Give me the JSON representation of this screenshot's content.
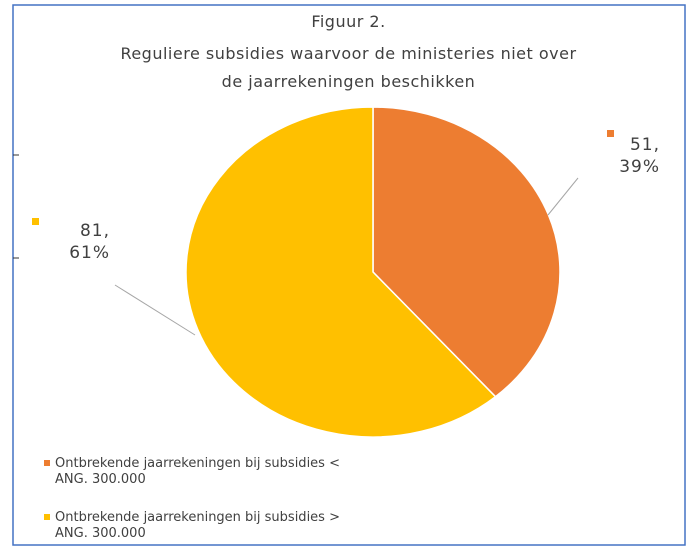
{
  "chart_data": {
    "type": "pie",
    "title": [
      "Figuur 2.",
      "Reguliere subsidies waarvoor de ministeries niet over",
      "de  jaarrekeningen beschikken"
    ],
    "series": [
      {
        "name": "Ontbrekende jaarrekeningen bij subsidies < ANG. 300.000",
        "color": "#ed7d31"
      },
      {
        "name": "Ontbrekende jaarrekeningen bij subsidies > ANG. 300.000",
        "color": "#ffc000"
      }
    ],
    "values": [
      51,
      81
    ],
    "value_labels": [
      "51, 39%",
      "81, 61%"
    ],
    "legend": "bottom-left"
  }
}
